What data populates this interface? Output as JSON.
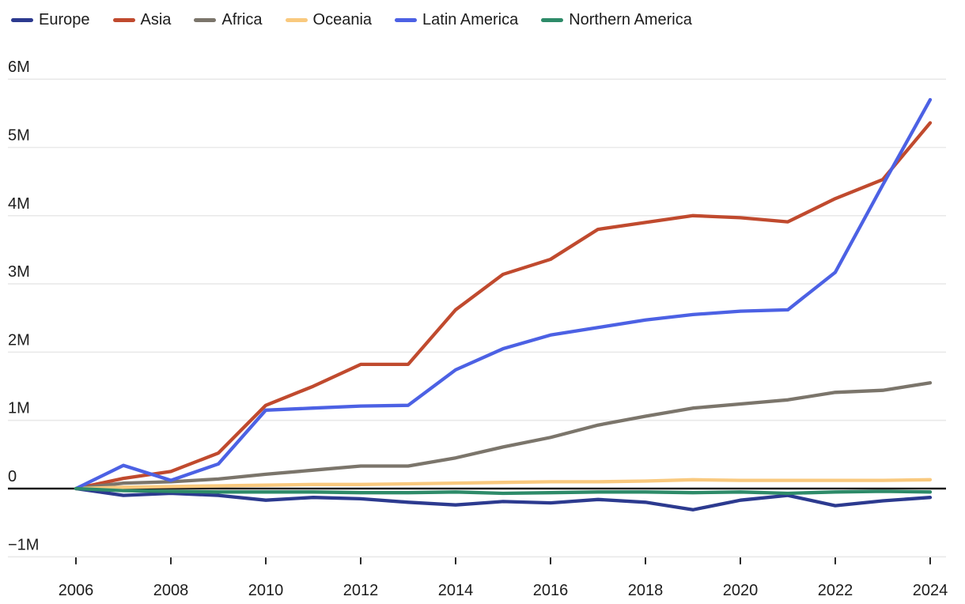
{
  "page": {
    "background": "#ffffff"
  },
  "chart_data": {
    "type": "line",
    "title": "",
    "xlabel": "",
    "ylabel": "",
    "grid": "horizontal-only",
    "legend_position": "top-left",
    "xlim": [
      2006,
      2024
    ],
    "ylim": [
      -1000000,
      6000000
    ],
    "x": [
      2006,
      2007,
      2008,
      2009,
      2010,
      2011,
      2012,
      2013,
      2014,
      2015,
      2016,
      2017,
      2018,
      2019,
      2020,
      2021,
      2022,
      2023,
      2024
    ],
    "x_tick_labels": [
      "2006",
      "2008",
      "2010",
      "2012",
      "2014",
      "2016",
      "2018",
      "2020",
      "2022",
      "2024"
    ],
    "x_tick_years": [
      2006,
      2008,
      2010,
      2012,
      2014,
      2016,
      2018,
      2020,
      2022,
      2024
    ],
    "y_ticks": [
      {
        "value": 6000000,
        "label": "6M"
      },
      {
        "value": 5000000,
        "label": "5M"
      },
      {
        "value": 4000000,
        "label": "4M"
      },
      {
        "value": 3000000,
        "label": "3M"
      },
      {
        "value": 2000000,
        "label": "2M"
      },
      {
        "value": 1000000,
        "label": "1M"
      },
      {
        "value": 0,
        "label": "0"
      },
      {
        "value": -1000000,
        "label": "−1M"
      }
    ],
    "series": [
      {
        "name": "Europe",
        "color": "#2c3a8f",
        "values": [
          0,
          -100000,
          -70000,
          -100000,
          -170000,
          -130000,
          -150000,
          -200000,
          -240000,
          -190000,
          -210000,
          -160000,
          -200000,
          -310000,
          -170000,
          -100000,
          -250000,
          -180000,
          -130000
        ]
      },
      {
        "name": "Asia",
        "color": "#c04a2e",
        "values": [
          0,
          150000,
          250000,
          520000,
          1220000,
          1500000,
          1820000,
          1820000,
          2620000,
          3140000,
          3360000,
          3800000,
          3900000,
          4000000,
          3970000,
          3910000,
          4250000,
          4530000,
          5360000
        ]
      },
      {
        "name": "Africa",
        "color": "#7b756b",
        "values": [
          0,
          80000,
          100000,
          140000,
          210000,
          270000,
          330000,
          330000,
          450000,
          610000,
          750000,
          930000,
          1060000,
          1180000,
          1240000,
          1300000,
          1410000,
          1440000,
          1550000
        ]
      },
      {
        "name": "Oceania",
        "color": "#f9c97e",
        "values": [
          0,
          20000,
          30000,
          40000,
          50000,
          60000,
          60000,
          70000,
          80000,
          90000,
          100000,
          100000,
          110000,
          130000,
          120000,
          120000,
          120000,
          120000,
          130000
        ]
      },
      {
        "name": "Latin America",
        "color": "#4c61e4",
        "values": [
          0,
          340000,
          120000,
          360000,
          1150000,
          1180000,
          1210000,
          1220000,
          1740000,
          2050000,
          2250000,
          2360000,
          2470000,
          2550000,
          2600000,
          2620000,
          3170000,
          4450000,
          5700000
        ]
      },
      {
        "name": "Northern America",
        "color": "#2e8b69",
        "values": [
          0,
          -30000,
          -40000,
          -50000,
          -50000,
          -50000,
          -60000,
          -60000,
          -50000,
          -70000,
          -60000,
          -50000,
          -50000,
          -60000,
          -50000,
          -70000,
          -50000,
          -40000,
          -50000
        ]
      }
    ],
    "axis_colors": {
      "gridline": "#e9e9e9",
      "zero_line": "#1a1a1a",
      "tick": "#2a2a2a",
      "text": "#1d1d1d"
    }
  }
}
